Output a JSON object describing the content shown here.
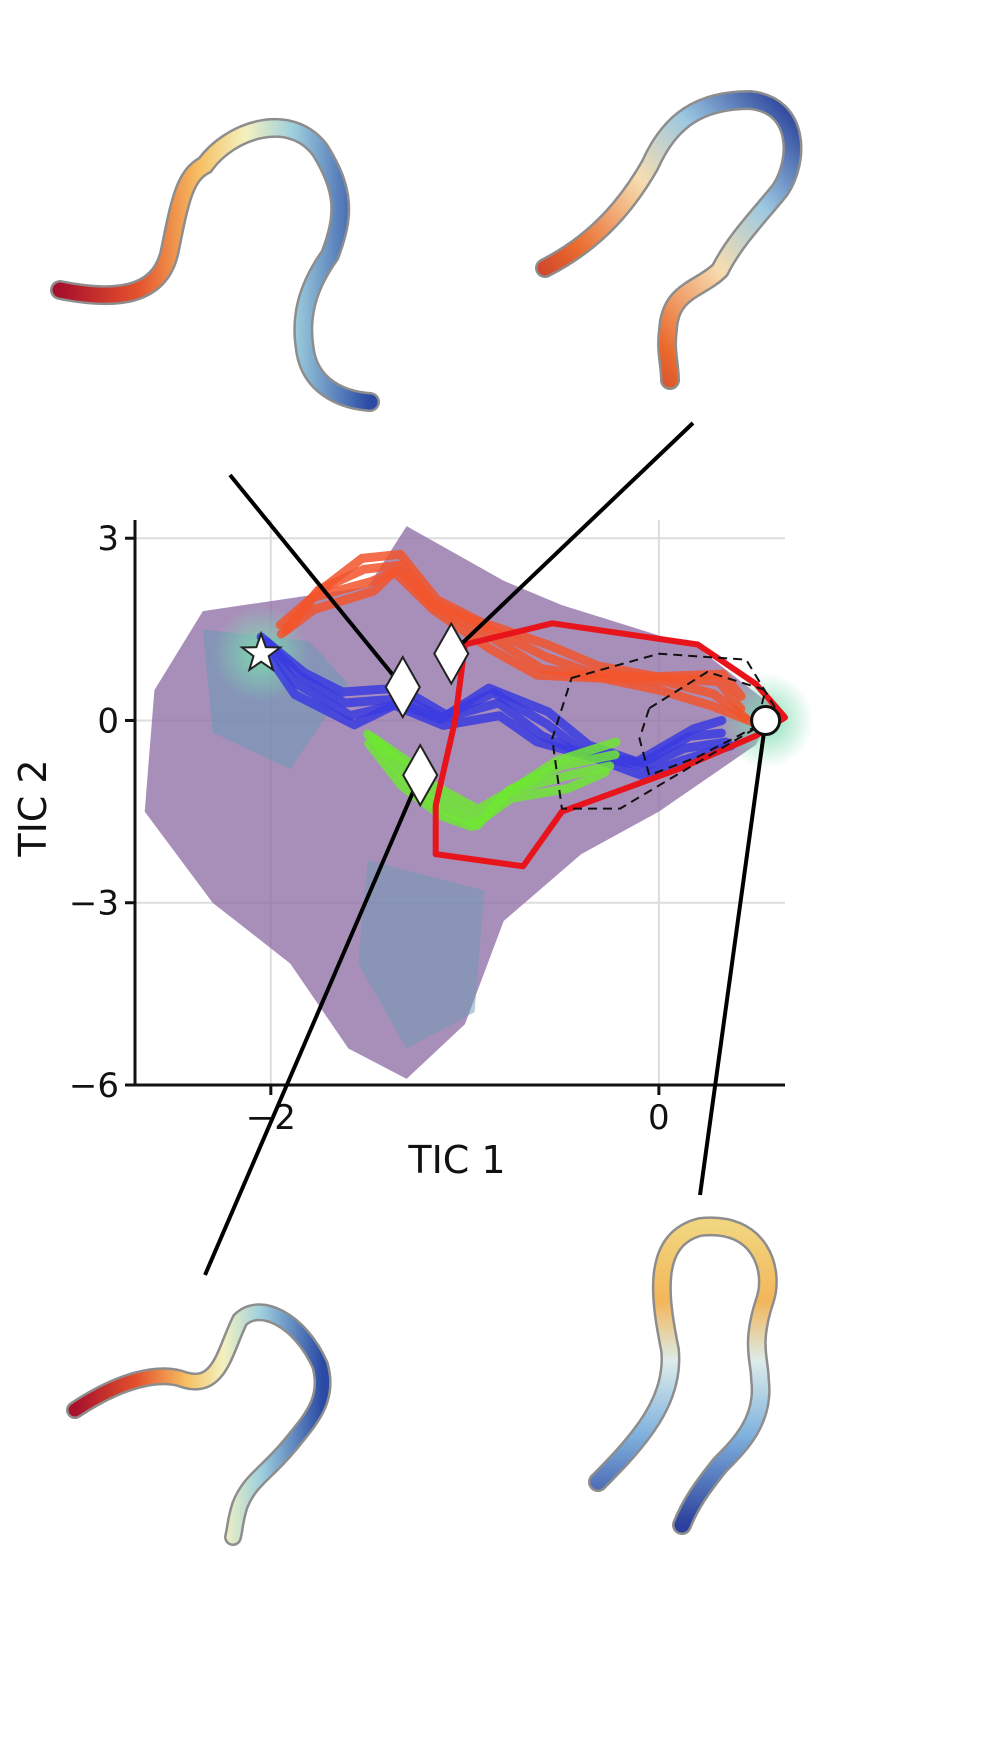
{
  "chart_data": {
    "type": "heatmap",
    "xlabel": "TIC 1",
    "ylabel": "TIC 2",
    "xlim": [
      -2.7,
      0.65
    ],
    "ylim": [
      -6.0,
      3.3
    ],
    "xticks": [
      {
        "value": -2,
        "label": "−2"
      },
      {
        "value": 0,
        "label": "0"
      }
    ],
    "yticks": [
      {
        "value": 3,
        "label": "3"
      },
      {
        "value": 0,
        "label": "0"
      },
      {
        "value": -3,
        "label": "−3"
      },
      {
        "value": -6,
        "label": "−6"
      }
    ],
    "grid": true,
    "colors": {
      "density_low": "#8f6fa6",
      "density_mid": "#6a9ab4",
      "density_high": "#7ed1b0",
      "trajectory_red": "#f2552c",
      "trajectory_blue": "#3a3be0",
      "trajectory_green": "#6ee632",
      "boundary": "#e8141b"
    },
    "density_regions": [
      {
        "name": "main",
        "points": [
          [
            -2.35,
            1.8
          ],
          [
            -1.5,
            2.2
          ],
          [
            -1.3,
            3.2
          ],
          [
            -0.8,
            2.3
          ],
          [
            -0.5,
            1.9
          ],
          [
            0.2,
            1.2
          ],
          [
            0.6,
            0.2
          ],
          [
            0.5,
            -0.4
          ],
          [
            0.0,
            -1.5
          ],
          [
            -0.4,
            -2.2
          ],
          [
            -0.8,
            -3.3
          ],
          [
            -1.0,
            -5.0
          ],
          [
            -1.3,
            -5.9
          ],
          [
            -1.6,
            -5.4
          ],
          [
            -1.9,
            -4.0
          ],
          [
            -2.3,
            -3.0
          ],
          [
            -2.65,
            -1.5
          ],
          [
            -2.6,
            0.5
          ]
        ]
      },
      {
        "name": "upper-basin",
        "points": [
          [
            -2.35,
            1.5
          ],
          [
            -1.8,
            1.3
          ],
          [
            -1.6,
            0.6
          ],
          [
            -1.9,
            -0.8
          ],
          [
            -2.3,
            -0.2
          ]
        ]
      },
      {
        "name": "lower-tail",
        "points": [
          [
            -1.5,
            -2.3
          ],
          [
            -0.9,
            -2.8
          ],
          [
            -0.95,
            -4.8
          ],
          [
            -1.3,
            -5.4
          ],
          [
            -1.55,
            -4.0
          ]
        ]
      }
    ],
    "trajectories": [
      {
        "name": "red",
        "color": "#f2552c",
        "points": [
          [
            -1.95,
            1.5
          ],
          [
            -1.75,
            2.0
          ],
          [
            -1.5,
            2.4
          ],
          [
            -1.35,
            2.6
          ],
          [
            -1.15,
            1.9
          ],
          [
            -0.9,
            1.4
          ],
          [
            -0.6,
            1.0
          ],
          [
            -0.3,
            0.8
          ],
          [
            0.0,
            0.6
          ],
          [
            0.3,
            0.5
          ],
          [
            0.45,
            0.2
          ]
        ]
      },
      {
        "name": "blue",
        "color": "#3a3be0",
        "points": [
          [
            -2.05,
            1.3
          ],
          [
            -1.85,
            0.6
          ],
          [
            -1.6,
            0.2
          ],
          [
            -1.35,
            0.4
          ],
          [
            -1.1,
            0.0
          ],
          [
            -0.85,
            0.3
          ],
          [
            -0.6,
            -0.1
          ],
          [
            -0.35,
            -0.5
          ],
          [
            -0.1,
            -0.8
          ],
          [
            0.15,
            -0.4
          ],
          [
            0.35,
            -0.2
          ]
        ]
      },
      {
        "name": "green",
        "color": "#6ee632",
        "points": [
          [
            -1.5,
            -0.3
          ],
          [
            -1.3,
            -0.9
          ],
          [
            -1.15,
            -1.3
          ],
          [
            -0.95,
            -1.6
          ],
          [
            -0.75,
            -1.2
          ],
          [
            -0.5,
            -0.9
          ],
          [
            -0.25,
            -0.6
          ]
        ]
      }
    ],
    "boundary_polygon": [
      [
        -1.0,
        1.25
      ],
      [
        -0.55,
        1.6
      ],
      [
        0.2,
        1.25
      ],
      [
        0.5,
        0.6
      ],
      [
        0.65,
        0.05
      ],
      [
        0.5,
        -0.25
      ],
      [
        0.1,
        -0.8
      ],
      [
        -0.5,
        -1.5
      ],
      [
        -0.7,
        -2.4
      ],
      [
        -1.15,
        -2.2
      ],
      [
        -1.15,
        -1.4
      ],
      [
        -1.05,
        0.0
      ]
    ],
    "dashed_contours": [
      [
        [
          -0.45,
          0.7
        ],
        [
          0.0,
          1.1
        ],
        [
          0.45,
          1.0
        ],
        [
          0.62,
          0.1
        ],
        [
          0.3,
          -0.5
        ],
        [
          -0.2,
          -1.45
        ],
        [
          -0.5,
          -1.45
        ],
        [
          -0.55,
          -0.3
        ]
      ],
      [
        [
          -0.05,
          0.2
        ],
        [
          0.25,
          0.8
        ],
        [
          0.55,
          0.5
        ],
        [
          0.5,
          -0.1
        ],
        [
          0.2,
          -0.6
        ],
        [
          -0.05,
          -0.9
        ],
        [
          -0.1,
          -0.3
        ]
      ]
    ],
    "markers": [
      {
        "shape": "star",
        "x": -2.05,
        "y": 1.1
      },
      {
        "shape": "diamond",
        "x": -1.32,
        "y": 0.55
      },
      {
        "shape": "diamond",
        "x": -1.07,
        "y": 1.1
      },
      {
        "shape": "diamond",
        "x": -1.23,
        "y": -0.9
      },
      {
        "shape": "circle",
        "x": 0.55,
        "y": 0.0
      }
    ],
    "structures": [
      {
        "name": "top-left",
        "linked_marker": 1
      },
      {
        "name": "top-right",
        "linked_marker": 2
      },
      {
        "name": "bottom-left",
        "linked_marker": 3
      },
      {
        "name": "bottom-right",
        "linked_marker": 4
      }
    ]
  }
}
